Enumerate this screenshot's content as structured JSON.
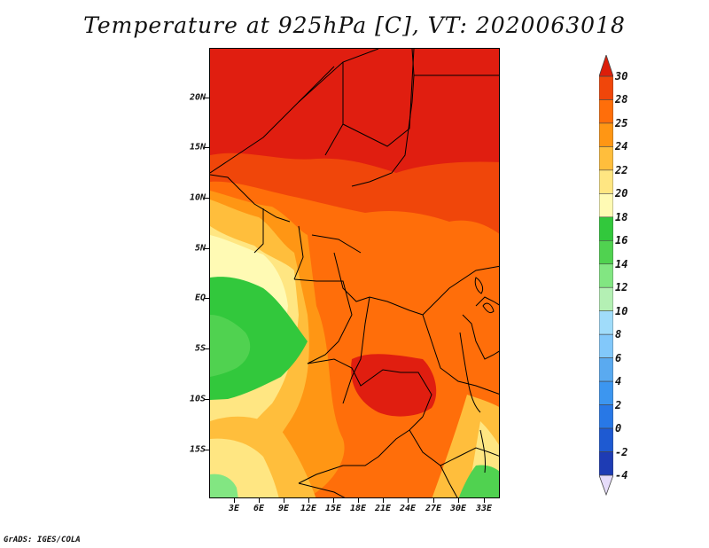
{
  "title": "Temperature at 925hPa [C], VT: 2020063018",
  "footer": "GrADS: IGES/COLA",
  "map": {
    "projection": "latlon",
    "lon_range": [
      0,
      35
    ],
    "lat_range": [
      -20,
      25
    ],
    "lat_labels": [
      {
        "lat": 20,
        "text": "20N"
      },
      {
        "lat": 15,
        "text": "15N"
      },
      {
        "lat": 10,
        "text": "10N"
      },
      {
        "lat": 5,
        "text": "5N"
      },
      {
        "lat": 0,
        "text": "EQ"
      },
      {
        "lat": -5,
        "text": "5S"
      },
      {
        "lat": -10,
        "text": "10S"
      },
      {
        "lat": -15,
        "text": "15S"
      }
    ],
    "lon_labels": [
      {
        "lon": 3,
        "text": "3E"
      },
      {
        "lon": 6,
        "text": "6E"
      },
      {
        "lon": 9,
        "text": "9E"
      },
      {
        "lon": 12,
        "text": "12E"
      },
      {
        "lon": 15,
        "text": "15E"
      },
      {
        "lon": 18,
        "text": "18E"
      },
      {
        "lon": 21,
        "text": "21E"
      },
      {
        "lon": 24,
        "text": "24E"
      },
      {
        "lon": 27,
        "text": "27E"
      },
      {
        "lon": 30,
        "text": "30E"
      },
      {
        "lon": 33,
        "text": "33E"
      }
    ]
  },
  "colorbar": {
    "levels": [
      "-4",
      "-2",
      "0",
      "2",
      "4",
      "6",
      "8",
      "10",
      "12",
      "14",
      "16",
      "18",
      "20",
      "22",
      "24",
      "25",
      "28",
      "30"
    ],
    "colors": [
      "#1a0f8a",
      "#1e3cb4",
      "#1e5ad2",
      "#2878e6",
      "#3c96f0",
      "#5aaaf0",
      "#82c8fa",
      "#a0dcfa",
      "#b4f0b4",
      "#82e682",
      "#50d250",
      "#32c83c",
      "#fffab4",
      "#ffe682",
      "#ffbe3c",
      "#ff9614",
      "#ff6e0a",
      "#f0460a",
      "#dc1e0a"
    ],
    "end_colors": {
      "low": "#e6dcfa",
      "high": "#dc1e0a"
    }
  }
}
